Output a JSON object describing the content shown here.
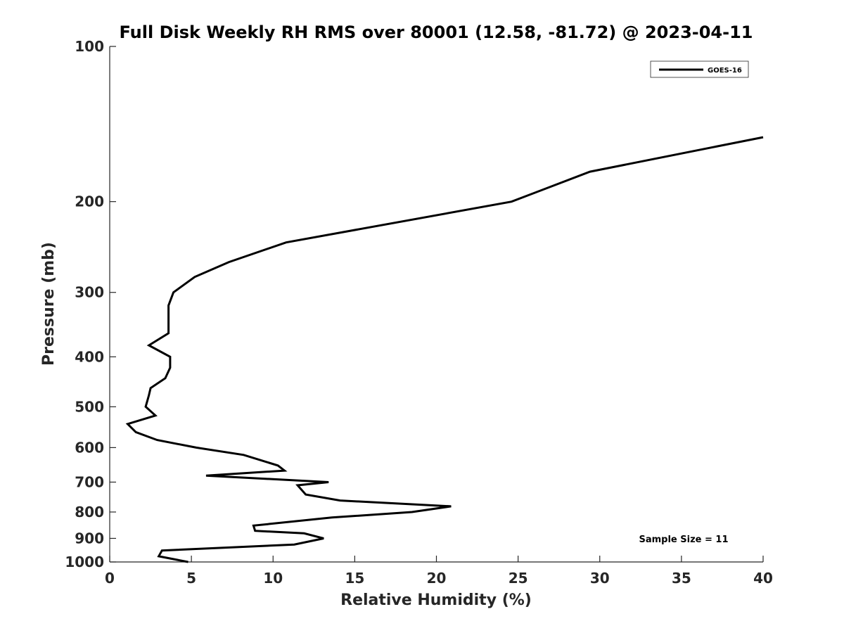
{
  "chart_data": {
    "type": "line",
    "title": "Full Disk Weekly RH RMS over 80001 (12.58, -81.72) @ 2023-04-11",
    "xlabel": "Relative Humidity (%)",
    "ylabel": "Pressure (mb)",
    "xlim": [
      0,
      40
    ],
    "ylim": [
      100,
      1000
    ],
    "yscale": "log",
    "yreversed": true,
    "grid": false,
    "legend_location": "top-right",
    "x_ticks": [
      0,
      5,
      10,
      15,
      20,
      25,
      30,
      35,
      40
    ],
    "x_tick_labels": [
      "0",
      "5",
      "10",
      "15",
      "20",
      "25",
      "30",
      "35",
      "40"
    ],
    "y_ticks": [
      100,
      200,
      300,
      400,
      500,
      600,
      700,
      800,
      900,
      1000
    ],
    "y_tick_labels": [
      "100",
      "200",
      "300",
      "400",
      "500",
      "600",
      "700",
      "800",
      "900",
      "1000"
    ],
    "series": [
      {
        "name": "GOES-16",
        "color": "#000000",
        "points": [
          [
            40.0,
            150
          ],
          [
            29.4,
            175
          ],
          [
            24.6,
            200
          ],
          [
            10.8,
            240
          ],
          [
            7.3,
            262
          ],
          [
            5.2,
            280
          ],
          [
            3.9,
            300
          ],
          [
            3.6,
            318
          ],
          [
            3.6,
            340
          ],
          [
            3.6,
            360
          ],
          [
            2.4,
            380
          ],
          [
            3.7,
            400
          ],
          [
            3.7,
            420
          ],
          [
            3.4,
            440
          ],
          [
            2.5,
            460
          ],
          [
            2.4,
            475
          ],
          [
            2.2,
            500
          ],
          [
            2.8,
            520
          ],
          [
            1.1,
            540
          ],
          [
            1.6,
            560
          ],
          [
            2.9,
            580
          ],
          [
            5.3,
            600
          ],
          [
            8.2,
            620
          ],
          [
            10.3,
            650
          ],
          [
            10.7,
            665
          ],
          [
            5.9,
            680
          ],
          [
            13.4,
            700
          ],
          [
            11.5,
            710
          ],
          [
            12.0,
            740
          ],
          [
            14.1,
            760
          ],
          [
            20.9,
            780
          ],
          [
            18.5,
            800
          ],
          [
            13.6,
            820
          ],
          [
            8.8,
            850
          ],
          [
            8.9,
            870
          ],
          [
            11.9,
            880
          ],
          [
            13.1,
            900
          ],
          [
            11.3,
            925
          ],
          [
            3.2,
            950
          ],
          [
            3.0,
            975
          ],
          [
            4.8,
            1000
          ]
        ]
      }
    ],
    "annotations": [
      "Sample Size = 11"
    ]
  }
}
